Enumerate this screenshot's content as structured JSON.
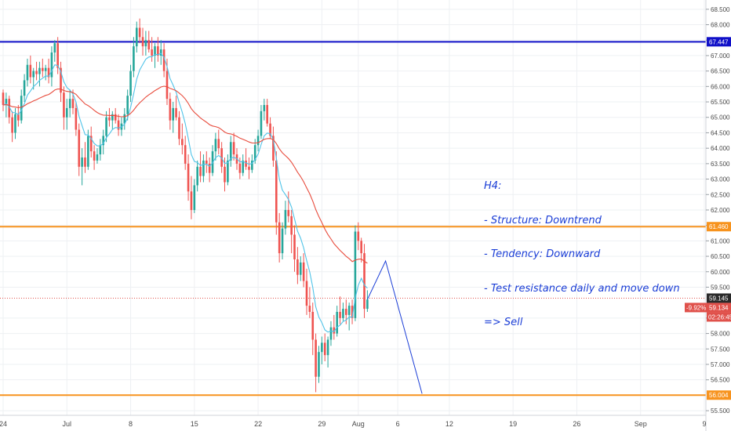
{
  "chart_data": {
    "type": "candlestick",
    "y_range": [
      55.35,
      68.8
    ],
    "y_ticks": [
      "68.500",
      "68.000",
      "67.500",
      "67.000",
      "66.500",
      "66.000",
      "65.500",
      "65.000",
      "64.500",
      "64.000",
      "63.500",
      "63.000",
      "62.500",
      "62.000",
      "61.500",
      "61.000",
      "60.500",
      "60.000",
      "59.500",
      "58.500",
      "58.000",
      "57.500",
      "57.000",
      "56.500",
      "55.500"
    ],
    "x_ticks": [
      {
        "label": "24",
        "idx": 0
      },
      {
        "label": "Jul",
        "idx": 21
      },
      {
        "label": "8",
        "idx": 42
      },
      {
        "label": "15",
        "idx": 63
      },
      {
        "label": "22",
        "idx": 84
      },
      {
        "label": "29",
        "idx": 105
      },
      {
        "label": "Aug",
        "idx": 117
      },
      {
        "label": "6",
        "idx": 130
      },
      {
        "label": "12",
        "idx": 147
      },
      {
        "label": "19",
        "idx": 168
      },
      {
        "label": "26",
        "idx": 189
      },
      {
        "label": "Sep",
        "idx": 210
      },
      {
        "label": "9",
        "idx": 231
      }
    ],
    "levels": [
      {
        "name": "resistance-top",
        "value": 67.447,
        "color": "#1010c8",
        "label": "67.447"
      },
      {
        "name": "resistance-daily",
        "value": 61.46,
        "color": "#f7931e",
        "label": "61.460"
      },
      {
        "name": "support-bottom",
        "value": 56.004,
        "color": "#f7931e",
        "label": "56.004"
      }
    ],
    "current_price": {
      "value": 59.145,
      "label": "59.145",
      "color": "#2a2a2a"
    },
    "change_badge": {
      "pct": "-9.92%",
      "price": "59.134",
      "countdown": "02:26:45",
      "color": "#e0514b"
    },
    "ohlc": [
      [
        65.8,
        65.9,
        65.2,
        65.4
      ],
      [
        65.4,
        65.8,
        65.0,
        65.6
      ],
      [
        65.6,
        65.7,
        64.8,
        65.0
      ],
      [
        65.0,
        65.2,
        64.2,
        64.5
      ],
      [
        64.5,
        65.3,
        64.3,
        65.1
      ],
      [
        65.1,
        65.4,
        64.7,
        64.9
      ],
      [
        64.9,
        65.9,
        64.8,
        65.7
      ],
      [
        65.7,
        66.4,
        65.5,
        66.2
      ],
      [
        66.2,
        66.9,
        66.0,
        66.7
      ],
      [
        66.7,
        67.0,
        66.1,
        66.3
      ],
      [
        66.3,
        66.6,
        65.9,
        66.5
      ],
      [
        66.5,
        66.8,
        66.2,
        66.4
      ],
      [
        66.4,
        66.8,
        66.0,
        66.6
      ],
      [
        66.6,
        66.9,
        66.3,
        66.5
      ],
      [
        66.5,
        66.7,
        66.2,
        66.6
      ],
      [
        66.6,
        66.9,
        66.1,
        66.3
      ],
      [
        66.3,
        67.3,
        66.0,
        67.1
      ],
      [
        67.1,
        67.5,
        66.8,
        67.4
      ],
      [
        67.4,
        67.6,
        66.4,
        66.6
      ],
      [
        66.6,
        66.8,
        65.5,
        65.8
      ],
      [
        65.8,
        66.0,
        64.6,
        65.0
      ],
      [
        65.0,
        65.6,
        64.6,
        65.3
      ],
      [
        65.3,
        65.9,
        65.0,
        65.6
      ],
      [
        65.6,
        65.9,
        65.1,
        65.3
      ],
      [
        65.3,
        65.5,
        64.4,
        64.6
      ],
      [
        64.6,
        64.8,
        63.1,
        63.4
      ],
      [
        63.4,
        64.0,
        62.8,
        63.7
      ],
      [
        63.7,
        64.2,
        63.2,
        63.4
      ],
      [
        63.4,
        64.6,
        63.3,
        64.4
      ],
      [
        64.4,
        64.7,
        63.7,
        63.9
      ],
      [
        63.9,
        64.1,
        63.3,
        63.6
      ],
      [
        63.6,
        64.0,
        63.5,
        63.8
      ],
      [
        63.8,
        64.3,
        63.6,
        64.1
      ],
      [
        64.1,
        64.6,
        63.8,
        64.4
      ],
      [
        64.4,
        65.2,
        64.2,
        65.0
      ],
      [
        65.0,
        65.3,
        64.7,
        64.9
      ],
      [
        64.9,
        65.2,
        64.6,
        65.1
      ],
      [
        65.1,
        65.3,
        64.8,
        64.9
      ],
      [
        64.9,
        65.1,
        64.4,
        64.6
      ],
      [
        64.6,
        65.0,
        64.4,
        64.8
      ],
      [
        64.8,
        65.3,
        64.6,
        65.1
      ],
      [
        65.1,
        65.9,
        64.9,
        65.7
      ],
      [
        65.7,
        66.7,
        65.5,
        66.5
      ],
      [
        66.5,
        67.6,
        66.3,
        67.3
      ],
      [
        67.3,
        68.1,
        67.1,
        67.9
      ],
      [
        67.9,
        68.2,
        67.4,
        67.6
      ],
      [
        67.6,
        67.9,
        67.0,
        67.3
      ],
      [
        67.3,
        67.8,
        67.0,
        67.5
      ],
      [
        67.5,
        67.8,
        67.1,
        67.2
      ],
      [
        67.2,
        67.6,
        66.8,
        67.0
      ],
      [
        67.0,
        67.4,
        66.6,
        67.3
      ],
      [
        67.3,
        67.6,
        66.8,
        67.0
      ],
      [
        67.0,
        67.5,
        66.7,
        67.2
      ],
      [
        67.2,
        67.4,
        66.3,
        66.5
      ],
      [
        66.5,
        66.9,
        65.4,
        65.6
      ],
      [
        65.6,
        65.8,
        64.6,
        64.9
      ],
      [
        64.9,
        65.5,
        64.5,
        65.3
      ],
      [
        65.3,
        65.7,
        64.9,
        65.0
      ],
      [
        65.0,
        65.2,
        64.1,
        64.3
      ],
      [
        64.3,
        64.8,
        63.8,
        64.1
      ],
      [
        64.1,
        64.4,
        63.3,
        63.5
      ],
      [
        63.5,
        63.8,
        62.3,
        62.6
      ],
      [
        62.6,
        63.1,
        61.7,
        62.0
      ],
      [
        62.0,
        63.0,
        61.9,
        62.8
      ],
      [
        62.8,
        63.6,
        62.6,
        63.4
      ],
      [
        63.4,
        63.9,
        62.9,
        63.1
      ],
      [
        63.1,
        63.8,
        62.9,
        63.6
      ],
      [
        63.6,
        63.9,
        63.2,
        63.5
      ],
      [
        63.5,
        63.7,
        62.9,
        63.2
      ],
      [
        63.2,
        64.1,
        63.1,
        63.9
      ],
      [
        63.9,
        64.5,
        63.6,
        64.3
      ],
      [
        64.3,
        64.6,
        63.8,
        64.0
      ],
      [
        64.0,
        64.2,
        63.2,
        63.4
      ],
      [
        63.4,
        63.7,
        62.6,
        62.9
      ],
      [
        62.9,
        63.8,
        62.8,
        63.6
      ],
      [
        63.6,
        64.4,
        63.4,
        64.2
      ],
      [
        64.2,
        64.5,
        63.6,
        63.8
      ],
      [
        63.8,
        64.0,
        63.3,
        63.5
      ],
      [
        63.5,
        63.7,
        63.0,
        63.2
      ],
      [
        63.2,
        63.8,
        63.1,
        63.6
      ],
      [
        63.6,
        64.0,
        63.3,
        63.4
      ],
      [
        63.4,
        63.7,
        63.0,
        63.3
      ],
      [
        63.3,
        63.8,
        63.2,
        63.6
      ],
      [
        63.6,
        64.3,
        63.5,
        64.1
      ],
      [
        64.1,
        64.6,
        63.9,
        64.4
      ],
      [
        64.4,
        65.4,
        64.3,
        65.2
      ],
      [
        65.2,
        65.6,
        64.9,
        65.4
      ],
      [
        65.4,
        65.6,
        64.7,
        64.8
      ],
      [
        64.8,
        65.0,
        64.3,
        64.4
      ],
      [
        64.4,
        64.7,
        63.4,
        63.6
      ],
      [
        63.6,
        63.9,
        61.2,
        61.6
      ],
      [
        61.6,
        61.9,
        60.3,
        60.6
      ],
      [
        60.6,
        61.6,
        60.4,
        61.4
      ],
      [
        61.4,
        62.3,
        61.2,
        62.0
      ],
      [
        62.0,
        62.6,
        61.6,
        61.8
      ],
      [
        61.8,
        62.0,
        60.6,
        61.2
      ],
      [
        61.2,
        61.5,
        60.0,
        60.4
      ],
      [
        60.4,
        60.8,
        59.6,
        59.9
      ],
      [
        59.9,
        60.5,
        59.7,
        60.3
      ],
      [
        60.3,
        60.6,
        59.5,
        59.7
      ],
      [
        59.7,
        60.1,
        58.6,
        58.9
      ],
      [
        58.9,
        59.5,
        58.5,
        58.7
      ],
      [
        58.7,
        59.0,
        57.3,
        57.8
      ],
      [
        57.8,
        58.0,
        56.1,
        56.6
      ],
      [
        56.6,
        57.6,
        56.4,
        57.4
      ],
      [
        57.4,
        57.9,
        57.0,
        57.7
      ],
      [
        57.7,
        58.0,
        57.1,
        57.3
      ],
      [
        57.3,
        57.9,
        56.9,
        57.8
      ],
      [
        57.8,
        58.4,
        57.6,
        58.2
      ],
      [
        58.2,
        58.6,
        57.8,
        58.0
      ],
      [
        58.0,
        58.9,
        57.9,
        58.7
      ],
      [
        58.7,
        59.2,
        58.3,
        58.5
      ],
      [
        58.5,
        59.0,
        58.4,
        58.8
      ],
      [
        58.8,
        59.1,
        58.3,
        58.6
      ],
      [
        58.6,
        59.0,
        58.1,
        58.9
      ],
      [
        58.9,
        59.1,
        58.3,
        58.5
      ],
      [
        58.5,
        61.5,
        58.4,
        61.3
      ],
      [
        61.3,
        61.6,
        60.7,
        61.0
      ],
      [
        61.0,
        61.1,
        60.3,
        60.6
      ],
      [
        60.6,
        60.9,
        58.5,
        58.8
      ],
      [
        58.8,
        59.4,
        58.7,
        59.1
      ]
    ]
  },
  "annotation": {
    "lines": [
      "H4:",
      "- Structure: Downtrend",
      "- Tendency: Downward",
      "- Test resistance daily and move down",
      "=> Sell"
    ],
    "text_color": "#1a3dd6"
  },
  "colors": {
    "up": "#26a69a",
    "down": "#ef5350",
    "ema_fast": "#4fc3e8",
    "ema_slow": "#e84c3d",
    "projection": "#1a3dd6",
    "grid": "#eef0f3"
  }
}
